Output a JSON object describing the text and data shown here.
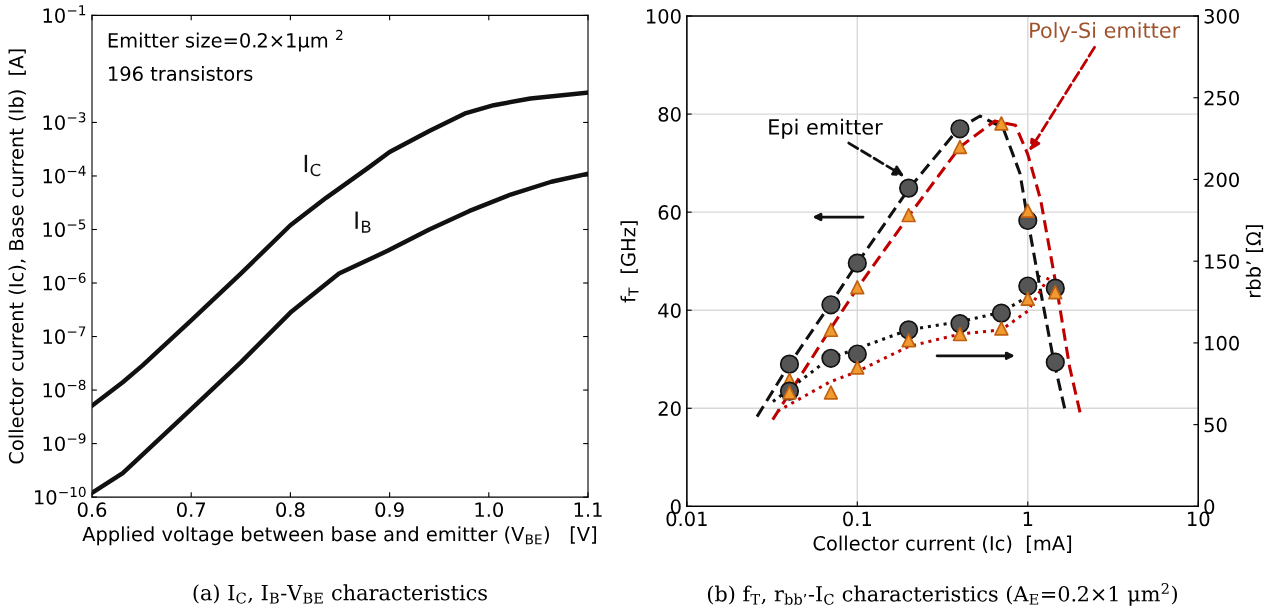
{
  "chart_data": [
    {
      "type": "line",
      "xlabel": "Applied voltage between base and emitter (V$_{BE}$)   [V]",
      "ylabel": "Collector current (Ic), Base current (Ib)  [A]",
      "log": "y",
      "xlim": [
        0.6,
        1.1
      ],
      "xticks": [
        0.6,
        {
          "value": 0.7,
          "label": "0.7"
        },
        {
          "value": 0.8,
          "label": "0.8"
        },
        {
          "value": 0.9,
          "label": "0.9"
        },
        {
          "value": 1.0,
          "label": "1.0"
        },
        {
          "value": 1.1,
          "label": "1.1"
        }
      ],
      "ylim": [
        1e-10,
        0.1
      ],
      "yticks": [
        {
          "value": 1e-10,
          "label": "10$^{−10}$"
        },
        {
          "value": 1e-09,
          "label": "10$^{−9}$"
        },
        {
          "value": 1e-08,
          "label": "10$^{−8}$"
        },
        {
          "value": 1e-07,
          "label": "10$^{−7}$"
        },
        {
          "value": 1e-06,
          "label": "10$^{−6}$"
        },
        {
          "value": 1e-05,
          "label": "10$^{−5}$"
        },
        {
          "value": 0.0001,
          "label": "10$^{−4}$"
        },
        {
          "value": 0.001,
          "label": "10$^{−3}$"
        },
        {
          "value": 0.1,
          "label": "10$^{−1}$"
        }
      ],
      "grid": false,
      "series": [
        {
          "color": "#111111",
          "x": [
            0.6,
            0.631,
            0.651,
            0.7,
            0.75,
            0.8,
            0.836,
            0.878,
            0.9,
            0.94,
            0.977,
            1.005,
            1.042,
            1.1
          ],
          "values": [
            5.1e-09,
            1.4e-08,
            2.9e-08,
            2e-07,
            1.5e-06,
            1.2e-05,
            3.9e-05,
            0.00014,
            0.00028,
            0.00069,
            0.0015,
            0.0021,
            0.0028,
            0.0036
          ]
        },
        {
          "color": "#111111",
          "x": [
            0.6,
            0.631,
            0.651,
            0.7,
            0.75,
            0.8,
            0.849,
            0.898,
            0.94,
            0.98,
            1.022,
            1.063,
            1.1
          ],
          "values": [
            1.2e-10,
            2.8e-10,
            6.2e-10,
            4.4e-09,
            3.3e-08,
            2.8e-07,
            1.5e-06,
            4e-06,
            1e-05,
            2.2e-05,
            4.5e-05,
            7.8e-05,
            0.00011
          ]
        }
      ],
      "annotations": [
        "Emitter size=0.2×1μm $^{2}$",
        "196 transistors",
        {
          "text": "I$_{C}$",
          "x": 0.843,
          "y": 3.9e-05
        },
        {
          "text": "I$_{B}$",
          "x": 0.894,
          "y": 3.4e-06
        },
        "(a) I$_{C}$, I$_{B}$-V$_{BE}$ characteristics"
      ]
    },
    {
      "type": "scatter",
      "xlabel": "Collector current (Ic)  [mA]",
      "ylabel": "f$_{T}$  [GHz]",
      "y2label": "rbb’ [Ω]",
      "log": "x",
      "xlim": [
        0.01,
        10
      ],
      "xticks": [
        {
          "value": 0.01,
          "label": "0.01"
        },
        {
          "value": 0.1,
          "label": "0.1"
        },
        1,
        10
      ],
      "ylim": [
        0,
        100
      ],
      "yticks": [
        0,
        20,
        40,
        60,
        80,
        100
      ],
      "y2lim": [
        0,
        300
      ],
      "y2ticks": [
        0,
        50,
        100,
        150,
        200,
        250,
        300
      ],
      "grid": true,
      "series": [
        {
          "type": "line",
          "line_style": "dashed",
          "marker": "none",
          "color": "#111111",
          "x": [
            0.0258,
            0.04,
            0.069,
            0.1,
            0.202,
            0.392,
            0.525,
            0.716,
            0.9,
            1.0,
            1.19,
            1.41,
            1.65
          ],
          "values": [
            18.3,
            29.0,
            41.1,
            49.6,
            64.9,
            77.0,
            79.6,
            77.2,
            67.9,
            58.4,
            43.8,
            30.2,
            19.8
          ]
        },
        {
          "type": "line",
          "line_style": "dashed",
          "marker": "none",
          "color": "#c00000",
          "x": [
            0.0319,
            0.069,
            0.1,
            0.202,
            0.4,
            0.64,
            0.847,
            1.0,
            1.19,
            1.49,
            1.76,
            2.03
          ],
          "values": [
            17.7,
            36.0,
            44.5,
            59.4,
            73.3,
            78.6,
            77.7,
            71.8,
            62.5,
            43.7,
            28.4,
            19.0
          ]
        },
        {
          "type": "line",
          "line_style": "dotted",
          "marker": "none",
          "axis": "y2",
          "color": "#111111",
          "x": [
            0.032,
            0.069,
            0.1,
            0.2,
            0.4,
            0.7,
            1.0,
            1.19
          ],
          "values": [
            64.1,
            90.6,
            96.5,
            108,
            113,
            118.7,
            128.4,
            142.5
          ]
        },
        {
          "type": "line",
          "line_style": "dotted",
          "marker": "none",
          "axis": "y2",
          "color": "#c00000",
          "x": [
            0.034,
            0.069,
            0.1,
            0.2,
            0.4,
            0.7,
            1.0,
            1.37
          ],
          "values": [
            58.2,
            76.1,
            82.5,
            97.8,
            105.4,
            108,
            119.5,
            142.5
          ]
        },
        {
          "type": "scatter",
          "marker": "circle",
          "color": "#555555",
          "x": [
            0.04,
            0.07,
            0.1,
            0.2,
            0.4,
            1.0,
            1.45
          ],
          "values": [
            29.0,
            41.1,
            49.6,
            64.9,
            77.0,
            58.3,
            29.4
          ]
        },
        {
          "type": "scatter",
          "marker": "triangle",
          "color": "#f09a30",
          "x": [
            0.04,
            0.07,
            0.1,
            0.2,
            0.4,
            0.7,
            1.0
          ],
          "values": [
            25.8,
            36.0,
            44.7,
            59.4,
            73.3,
            78.1,
            60.3
          ]
        },
        {
          "type": "scatter",
          "marker": "circle",
          "axis": "y2",
          "color": "#555555",
          "x": [
            0.04,
            0.07,
            0.1,
            0.2,
            0.4,
            0.7,
            1.0,
            1.45
          ],
          "values": [
            70.5,
            90.6,
            93.2,
            108,
            111.8,
            118.2,
            134.8,
            133.5
          ]
        },
        {
          "type": "scatter",
          "marker": "triangle",
          "axis": "y2",
          "color": "#f09a30",
          "x": [
            0.04,
            0.07,
            0.1,
            0.2,
            0.4,
            0.7,
            1.0,
            1.45
          ],
          "values": [
            69.7,
            69.7,
            85,
            101.6,
            105.4,
            108.8,
            127,
            131
          ]
        }
      ],
      "annotations": [
        "Epi emitter",
        {
          "text": "Poly-Si emitter",
          "x": 1.0,
          "y": 72
        },
        "(b) f$_{T}$, r$_{bb’}$-I$_{C}$ characteristics (A$_{E}$=0.2×1 μm$^{2}$)"
      ]
    }
  ]
}
